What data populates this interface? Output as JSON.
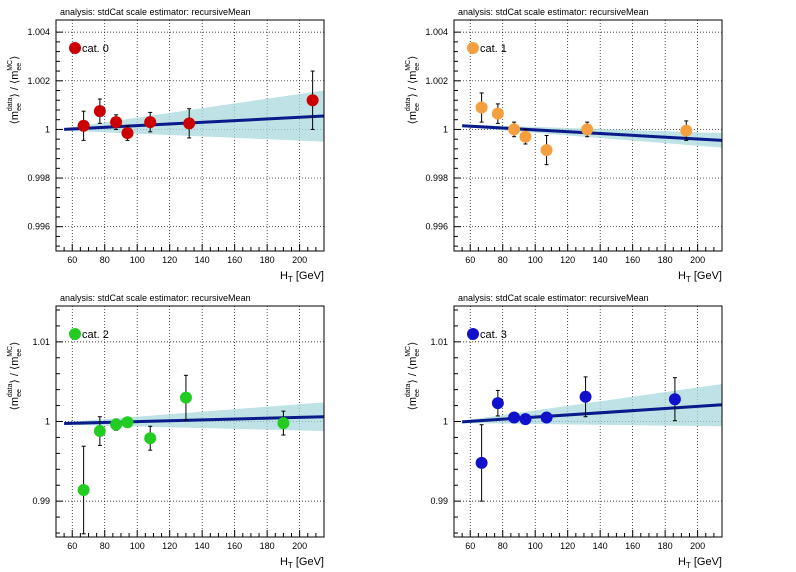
{
  "chart_data": [
    {
      "type": "scatter",
      "header": "analysis: stdCat   scale estimator: recursiveMean",
      "legend": "cat. 0",
      "marker_color": "#cc0000",
      "xlabel": {
        "main": "H",
        "sub": "T",
        "unit": "[GeV]"
      },
      "ylabel": {
        "a": "⟨m",
        "a_sub": "ee",
        "a_sup": "data",
        "b": "⟩ / ⟨m",
        "b_sub": "ee",
        "b_sup": "MC",
        "c": "⟩"
      },
      "xlim": [
        50,
        215
      ],
      "ylim": [
        0.995,
        1.0045
      ],
      "xticks": [
        60,
        80,
        100,
        120,
        140,
        160,
        180,
        200
      ],
      "xtick_labels": [
        "60",
        "80",
        "100",
        "120",
        "140",
        "160",
        "180",
        "200"
      ],
      "yticks": [
        0.996,
        0.998,
        1.0,
        1.002,
        1.004
      ],
      "ytick_labels": [
        "0.996",
        "0.998",
        "1",
        "1.002",
        "1.004"
      ],
      "points": [
        {
          "x": 67,
          "y": 1.00015,
          "err": 0.0006
        },
        {
          "x": 77,
          "y": 1.00075,
          "err": 0.0005
        },
        {
          "x": 87,
          "y": 1.0003,
          "err": 0.0003
        },
        {
          "x": 94,
          "y": 0.99985,
          "err": 0.0003
        },
        {
          "x": 108,
          "y": 1.0003,
          "err": 0.0004
        },
        {
          "x": 132,
          "y": 1.00025,
          "err": 0.0006
        },
        {
          "x": 208,
          "y": 1.0012,
          "err": 0.0012
        }
      ],
      "fit": {
        "y_start": 1.0,
        "y_end": 1.00055,
        "band_lo_start": 0.99995,
        "band_hi_start": 1.00005,
        "band_lo_end": 0.9995,
        "band_hi_end": 1.0016
      }
    },
    {
      "type": "scatter",
      "header": "analysis: stdCat   scale estimator: recursiveMean",
      "legend": "cat. 1",
      "marker_color": "#f5a040",
      "xlabel": {
        "main": "H",
        "sub": "T",
        "unit": "[GeV]"
      },
      "ylabel": {
        "a": "⟨m",
        "a_sub": "ee",
        "a_sup": "data",
        "b": "⟩ / ⟨m",
        "b_sub": "ee",
        "b_sup": "MC",
        "c": "⟩"
      },
      "xlim": [
        50,
        215
      ],
      "ylim": [
        0.995,
        1.0045
      ],
      "xticks": [
        60,
        80,
        100,
        120,
        140,
        160,
        180,
        200
      ],
      "xtick_labels": [
        "60",
        "80",
        "100",
        "120",
        "140",
        "160",
        "180",
        "200"
      ],
      "yticks": [
        0.996,
        0.998,
        1.0,
        1.002,
        1.004
      ],
      "ytick_labels": [
        "0.996",
        "0.998",
        "1",
        "1.002",
        "1.004"
      ],
      "points": [
        {
          "x": 67,
          "y": 1.0009,
          "err": 0.0006
        },
        {
          "x": 77,
          "y": 1.00065,
          "err": 0.0004
        },
        {
          "x": 87,
          "y": 1.0,
          "err": 0.0003
        },
        {
          "x": 94,
          "y": 0.9997,
          "err": 0.0003
        },
        {
          "x": 107,
          "y": 0.99915,
          "err": 0.0006
        },
        {
          "x": 132,
          "y": 1.0,
          "err": 0.0003
        },
        {
          "x": 193,
          "y": 0.99995,
          "err": 0.0004
        }
      ],
      "fit": {
        "y_start": 1.00015,
        "y_end": 0.99955,
        "band_lo_start": 1.0001,
        "band_hi_start": 1.0002,
        "band_lo_end": 0.99925,
        "band_hi_end": 0.99985
      }
    },
    {
      "type": "scatter",
      "header": "analysis: stdCat   scale estimator: recursiveMean",
      "legend": "cat. 2",
      "marker_color": "#22cc22",
      "xlabel": {
        "main": "H",
        "sub": "T",
        "unit": "[GeV]"
      },
      "ylabel": {
        "a": "⟨m",
        "a_sub": "ee",
        "a_sup": "data",
        "b": "⟩ / ⟨m",
        "b_sub": "ee",
        "b_sup": "MC",
        "c": "⟩"
      },
      "xlim": [
        50,
        215
      ],
      "ylim": [
        0.9855,
        1.0145
      ],
      "xticks": [
        60,
        80,
        100,
        120,
        140,
        160,
        180,
        200
      ],
      "xtick_labels": [
        "60",
        "80",
        "100",
        "120",
        "140",
        "160",
        "180",
        "200"
      ],
      "yticks": [
        0.99,
        1.0,
        1.01
      ],
      "ytick_labels": [
        "0.99",
        "1",
        "1.01"
      ],
      "points": [
        {
          "x": 67,
          "y": 0.9914,
          "err": 0.0055
        },
        {
          "x": 77,
          "y": 0.9988,
          "err": 0.0018
        },
        {
          "x": 87,
          "y": 0.9996,
          "err": 0.0007
        },
        {
          "x": 94,
          "y": 0.9999,
          "err": 0.0006
        },
        {
          "x": 108,
          "y": 0.9979,
          "err": 0.0015
        },
        {
          "x": 130,
          "y": 1.003,
          "err": 0.0028
        },
        {
          "x": 190,
          "y": 0.9998,
          "err": 0.0015
        }
      ],
      "fit": {
        "y_start": 0.99975,
        "y_end": 1.0006,
        "band_lo_start": 0.9996,
        "band_hi_start": 0.9999,
        "band_lo_end": 0.9988,
        "band_hi_end": 1.0024
      }
    },
    {
      "type": "scatter",
      "header": "analysis: stdCat   scale estimator: recursiveMean",
      "legend": "cat. 3",
      "marker_color": "#1111cc",
      "xlabel": {
        "main": "H",
        "sub": "T",
        "unit": "[GeV]"
      },
      "ylabel": {
        "a": "⟨m",
        "a_sub": "ee",
        "a_sup": "data",
        "b": "⟩ / ⟨m",
        "b_sub": "ee",
        "b_sup": "MC",
        "c": "⟩"
      },
      "xlim": [
        50,
        215
      ],
      "ylim": [
        0.9855,
        1.0145
      ],
      "xticks": [
        60,
        80,
        100,
        120,
        140,
        160,
        180,
        200
      ],
      "xtick_labels": [
        "60",
        "80",
        "100",
        "120",
        "140",
        "160",
        "180",
        "200"
      ],
      "yticks": [
        0.99,
        1.0,
        1.01
      ],
      "ytick_labels": [
        "0.99",
        "1",
        "1.01"
      ],
      "points": [
        {
          "x": 67,
          "y": 0.9948,
          "err": 0.0048
        },
        {
          "x": 77,
          "y": 1.0023,
          "err": 0.0016
        },
        {
          "x": 87,
          "y": 1.0005,
          "err": 0.0004
        },
        {
          "x": 94,
          "y": 1.0003,
          "err": 0.0004
        },
        {
          "x": 107,
          "y": 1.0005,
          "err": 0.0006
        },
        {
          "x": 131,
          "y": 1.0031,
          "err": 0.0025
        },
        {
          "x": 186,
          "y": 1.0028,
          "err": 0.0027
        }
      ],
      "fit": {
        "y_start": 0.99995,
        "y_end": 1.0021,
        "band_lo_start": 0.9998,
        "band_hi_start": 1.0001,
        "band_lo_end": 0.9994,
        "band_hi_end": 1.0047
      }
    }
  ]
}
